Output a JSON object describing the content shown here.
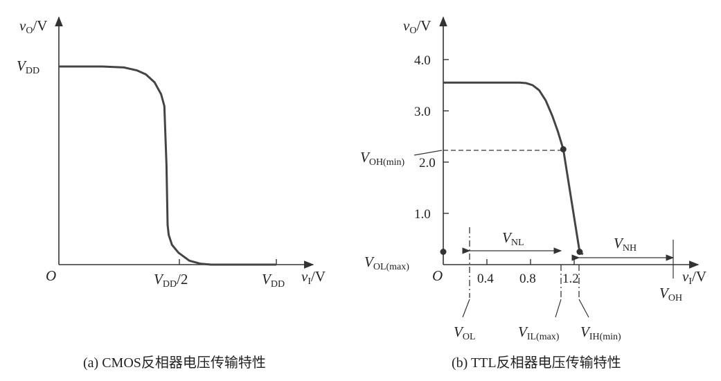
{
  "chart_data": [
    {
      "type": "line",
      "caption": "(a) CMOS反相器电压传输特性",
      "ylabel": {
        "main": "v",
        "sub": "O",
        "unit": "/V"
      },
      "xlabel": {
        "main": "v",
        "sub": "I",
        "unit": "/V"
      },
      "origin": "O",
      "x_ticks": [
        {
          "main": "V",
          "sub": "DD",
          "suffix": "/2",
          "value": 0.5
        },
        {
          "main": "V",
          "sub": "DD",
          "suffix": "",
          "value": 1.0
        }
      ],
      "y_ticks": [
        {
          "main": "V",
          "sub": "DD",
          "value": 1.0
        }
      ],
      "xlim": [
        0,
        1.2
      ],
      "ylim": [
        0,
        1.15
      ],
      "series": [
        {
          "x": [
            0,
            0.2,
            0.3,
            0.36,
            0.4,
            0.44,
            0.47,
            0.485,
            0.495,
            0.5,
            0.505,
            0.52,
            0.55,
            0.6,
            0.65,
            0.7,
            0.8,
            1.0
          ],
          "y": [
            1.0,
            1.0,
            0.995,
            0.98,
            0.96,
            0.92,
            0.86,
            0.8,
            0.5,
            0.2,
            0.15,
            0.1,
            0.06,
            0.02,
            0.005,
            0,
            0,
            0
          ]
        }
      ]
    },
    {
      "type": "line",
      "caption": "(b) TTL反相器电压传输特性",
      "ylabel": {
        "main": "v",
        "sub": "O",
        "unit": "/V"
      },
      "xlabel": {
        "main": "v",
        "sub": "I",
        "unit": "/V"
      },
      "origin": "O",
      "x_ticks": [
        {
          "label": "0.4",
          "value": 0.4
        },
        {
          "label": "0.8",
          "value": 0.8
        },
        {
          "label": "1.2",
          "value": 1.2
        }
      ],
      "y_ticks": [
        {
          "label": "1.0",
          "value": 1.0
        },
        {
          "label": "2.0",
          "value": 2.0
        },
        {
          "label": "3.0",
          "value": 3.0
        },
        {
          "label": "4.0",
          "value": 4.0
        }
      ],
      "xlim": [
        0,
        2.8
      ],
      "ylim": [
        0,
        4.6
      ],
      "series": [
        {
          "x": [
            0,
            0.7,
            0.76,
            0.82,
            0.88,
            0.94,
            1.0,
            1.05,
            1.1,
            1.25,
            1.28
          ],
          "y": [
            3.55,
            3.55,
            3.54,
            3.5,
            3.4,
            3.2,
            2.9,
            2.6,
            2.25,
            0.25,
            0.2
          ]
        }
      ],
      "markers": [
        {
          "name": "voh-min",
          "x": 1.1,
          "y": 2.25
        },
        {
          "name": "vol-max",
          "x": 0,
          "y": 0.25
        },
        {
          "name": "vih-min",
          "x": 1.25,
          "y": 0.25
        }
      ],
      "annotations": {
        "voh_min": {
          "main": "V",
          "sub": "OH(min)"
        },
        "vol_max": {
          "main": "V",
          "sub": "OL(max)"
        },
        "vnl": {
          "main": "V",
          "sub": "NL"
        },
        "vnh": {
          "main": "V",
          "sub": "NH"
        },
        "vol": {
          "main": "V",
          "sub": "OL",
          "x": 0.25
        },
        "vil_max": {
          "main": "V",
          "sub": "IL(max)",
          "x": 1.1
        },
        "vih_min": {
          "main": "V",
          "sub": "IH(min)",
          "x": 1.25
        },
        "voh": {
          "main": "V",
          "sub": "OH",
          "x": 2.6
        }
      }
    }
  ]
}
